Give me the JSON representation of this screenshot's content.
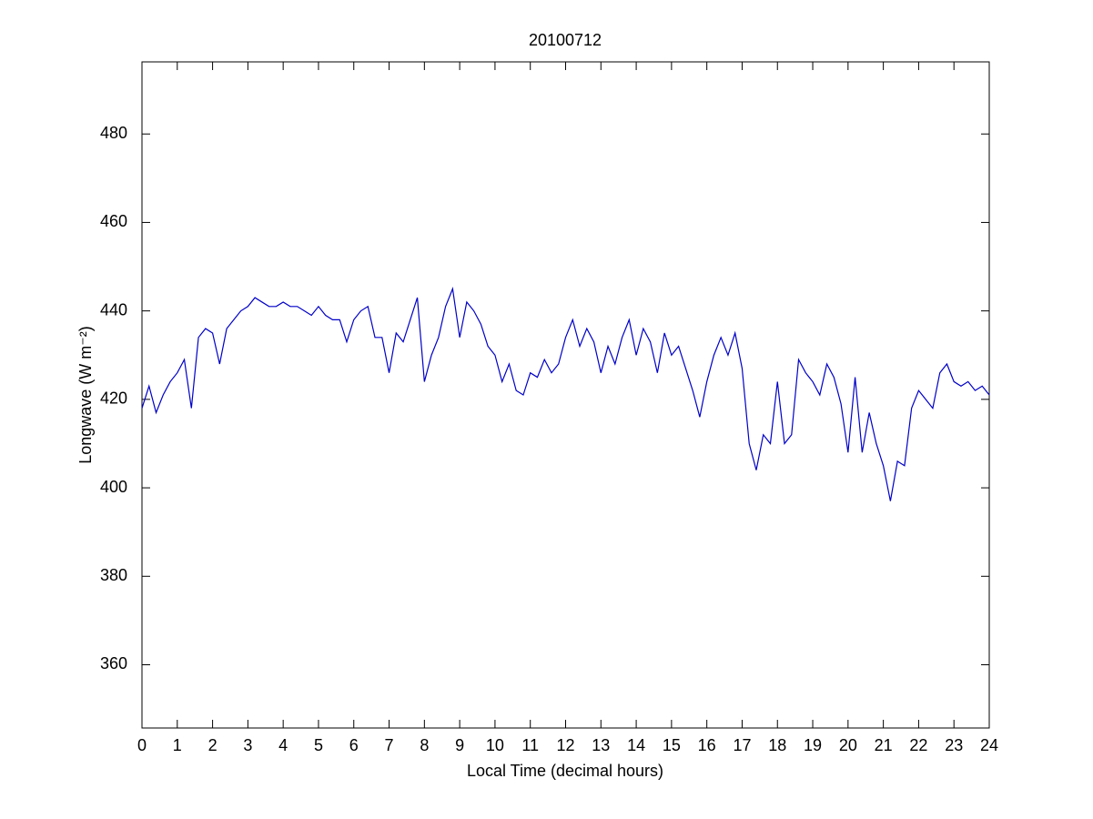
{
  "chart_data": {
    "type": "line",
    "title": "20100712",
    "xlabel": "Local Time (decimal hours)",
    "ylabel": "Longwave (W m⁻²)",
    "x": [
      0,
      0.2,
      0.4,
      0.6,
      0.8,
      1,
      1.2,
      1.4,
      1.6,
      1.8,
      2,
      2.2,
      2.4,
      2.6,
      2.8,
      3,
      3.2,
      3.4,
      3.6,
      3.8,
      4,
      4.2,
      4.4,
      4.6,
      4.8,
      5,
      5.2,
      5.4,
      5.6,
      5.8,
      6,
      6.2,
      6.4,
      6.6,
      6.8,
      7,
      7.2,
      7.4,
      7.6,
      7.8,
      8,
      8.2,
      8.4,
      8.6,
      8.8,
      9,
      9.2,
      9.4,
      9.6,
      9.8,
      10,
      10.2,
      10.4,
      10.6,
      10.8,
      11,
      11.2,
      11.4,
      11.6,
      11.8,
      12,
      12.2,
      12.4,
      12.6,
      12.8,
      13,
      13.2,
      13.4,
      13.6,
      13.8,
      14,
      14.2,
      14.4,
      14.6,
      14.8,
      15,
      15.2,
      15.4,
      15.6,
      15.8,
      16,
      16.2,
      16.4,
      16.6,
      16.8,
      17,
      17.2,
      17.4,
      17.6,
      17.8,
      18,
      18.2,
      18.4,
      18.6,
      18.8,
      19,
      19.2,
      19.4,
      19.6,
      19.8,
      20,
      20.2,
      20.4,
      20.6,
      20.8,
      21,
      21.2,
      21.4,
      21.6,
      21.8,
      22,
      22.2,
      22.4,
      22.6,
      22.8,
      23,
      23.2,
      23.4,
      23.6,
      23.8,
      24
    ],
    "series": [
      {
        "color": "#0000c8",
        "values": [
          418,
          423,
          417,
          421,
          424,
          426,
          429,
          418,
          434,
          436,
          435,
          428,
          436,
          438,
          440,
          441,
          443,
          442,
          441,
          441,
          442,
          441,
          441,
          440,
          439,
          441,
          439,
          438,
          438,
          433,
          438,
          440,
          441,
          434,
          434,
          426,
          435,
          433,
          438,
          443,
          424,
          430,
          434,
          441,
          445,
          434,
          442,
          440,
          437,
          432,
          430,
          424,
          428,
          422,
          421,
          426,
          425,
          429,
          426,
          428,
          434,
          438,
          432,
          436,
          433,
          426,
          432,
          428,
          434,
          438,
          430,
          436,
          433,
          426,
          435,
          430,
          432,
          427,
          422,
          416,
          424,
          430,
          434,
          430,
          435,
          427,
          410,
          404,
          412,
          410,
          424,
          410,
          412,
          429,
          426,
          424,
          421,
          428,
          425,
          419,
          408,
          425,
          408,
          417,
          410,
          405,
          397,
          406,
          405,
          418,
          422,
          420,
          418,
          426,
          428,
          424,
          423,
          424,
          422,
          423,
          421
        ]
      }
    ],
    "xlim": [
      0,
      24
    ],
    "xticks": [
      0,
      1,
      2,
      3,
      4,
      5,
      6,
      7,
      8,
      9,
      10,
      11,
      12,
      13,
      14,
      15,
      16,
      17,
      18,
      19,
      20,
      21,
      22,
      23,
      24
    ],
    "ylim": [
      345.7,
      496.3
    ],
    "yticks": [
      360,
      380,
      400,
      420,
      440,
      460,
      480
    ]
  }
}
